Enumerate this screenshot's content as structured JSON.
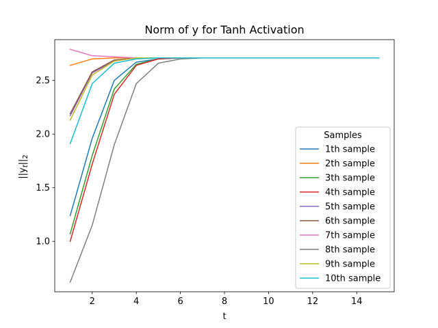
{
  "chart_data": {
    "type": "line",
    "title": "Norm of y for Tanh Activation",
    "xlabel": "t",
    "ylabel_prefix": "||y",
    "ylabel_sub": "t",
    "ylabel_suffix": "||",
    "ylabel_sub2": "2",
    "xlim": [
      0.3,
      15.7
    ],
    "ylim": [
      0.53,
      2.88
    ],
    "xticks": [
      2,
      4,
      6,
      8,
      10,
      12,
      14
    ],
    "yticks": [
      1.0,
      1.5,
      2.0,
      2.5
    ],
    "ytick_labels": [
      "1.0",
      "1.5",
      "2.0",
      "2.5"
    ],
    "grid": false,
    "legend_title": "Samples",
    "legend_position": "center-right",
    "x": [
      1,
      2,
      3,
      4,
      5,
      6,
      7,
      8,
      9,
      10,
      11,
      12,
      13,
      14,
      15
    ],
    "series": [
      {
        "name": "1th sample",
        "color": "#1f77b4",
        "values": [
          1.24,
          1.96,
          2.5,
          2.67,
          2.7,
          2.71,
          2.71,
          2.71,
          2.71,
          2.71,
          2.71,
          2.71,
          2.71,
          2.71,
          2.71
        ]
      },
      {
        "name": "2th sample",
        "color": "#ff7f0e",
        "values": [
          2.64,
          2.7,
          2.71,
          2.71,
          2.71,
          2.71,
          2.71,
          2.71,
          2.71,
          2.71,
          2.71,
          2.71,
          2.71,
          2.71,
          2.71
        ]
      },
      {
        "name": "3th sample",
        "color": "#2ca02c",
        "values": [
          1.07,
          1.8,
          2.42,
          2.65,
          2.7,
          2.71,
          2.71,
          2.71,
          2.71,
          2.71,
          2.71,
          2.71,
          2.71,
          2.71,
          2.71
        ]
      },
      {
        "name": "4th sample",
        "color": "#d62728",
        "values": [
          1.0,
          1.72,
          2.37,
          2.64,
          2.7,
          2.71,
          2.71,
          2.71,
          2.71,
          2.71,
          2.71,
          2.71,
          2.71,
          2.71,
          2.71
        ]
      },
      {
        "name": "5th sample",
        "color": "#9467bd",
        "values": [
          2.17,
          2.57,
          2.68,
          2.71,
          2.71,
          2.71,
          2.71,
          2.71,
          2.71,
          2.71,
          2.71,
          2.71,
          2.71,
          2.71,
          2.71
        ]
      },
      {
        "name": "6th sample",
        "color": "#8c564b",
        "values": [
          2.19,
          2.58,
          2.69,
          2.71,
          2.71,
          2.71,
          2.71,
          2.71,
          2.71,
          2.71,
          2.71,
          2.71,
          2.71,
          2.71,
          2.71
        ]
      },
      {
        "name": "7th sample",
        "color": "#e377c2",
        "values": [
          2.79,
          2.73,
          2.72,
          2.71,
          2.71,
          2.71,
          2.71,
          2.71,
          2.71,
          2.71,
          2.71,
          2.71,
          2.71,
          2.71,
          2.71
        ]
      },
      {
        "name": "8th sample",
        "color": "#7f7f7f",
        "values": [
          0.62,
          1.15,
          1.9,
          2.47,
          2.66,
          2.7,
          2.71,
          2.71,
          2.71,
          2.71,
          2.71,
          2.71,
          2.71,
          2.71,
          2.71
        ]
      },
      {
        "name": "9th sample",
        "color": "#bcbd22",
        "values": [
          2.13,
          2.55,
          2.68,
          2.71,
          2.71,
          2.71,
          2.71,
          2.71,
          2.71,
          2.71,
          2.71,
          2.71,
          2.71,
          2.71,
          2.71
        ]
      },
      {
        "name": "10th sample",
        "color": "#17becf",
        "values": [
          1.91,
          2.47,
          2.66,
          2.7,
          2.71,
          2.71,
          2.71,
          2.71,
          2.71,
          2.71,
          2.71,
          2.71,
          2.71,
          2.71,
          2.71
        ]
      }
    ]
  }
}
